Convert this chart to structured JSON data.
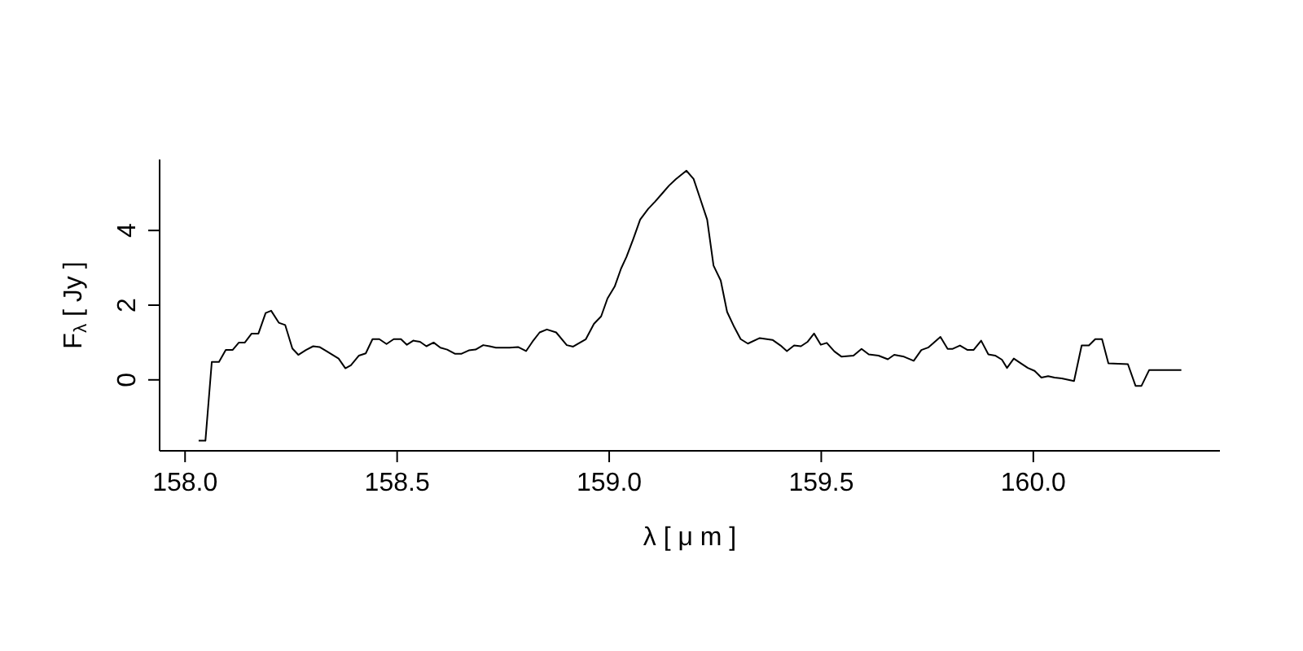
{
  "chart_data": {
    "type": "line",
    "xlabel": "λ [ μ m ]",
    "ylabel": "F$_{λ}$ [ Jy ]",
    "xlim": [
      157.94,
      160.44
    ],
    "ylim": [
      -1.9,
      5.9
    ],
    "xticks": [
      {
        "value": 158,
        "label": "158.0"
      },
      {
        "value": 158.5,
        "label": "158.5"
      },
      {
        "value": 159,
        "label": "159.0"
      },
      {
        "value": 159.5,
        "label": "159.5"
      },
      {
        "value": 160,
        "label": "160.0"
      }
    ],
    "yticks": [
      0,
      2,
      4
    ],
    "grid": false,
    "legend": false,
    "marker": "none",
    "line_style": "solid",
    "x": [
      158.032,
      158.048,
      158.063,
      158.08,
      158.096,
      158.112,
      158.127,
      158.141,
      158.157,
      158.173,
      158.19,
      158.203,
      158.221,
      158.236,
      158.253,
      158.267,
      158.285,
      158.302,
      158.317,
      158.333,
      158.362,
      158.378,
      158.391,
      158.41,
      158.426,
      158.442,
      158.458,
      158.475,
      158.492,
      158.509,
      158.523,
      158.538,
      158.554,
      158.569,
      158.586,
      158.602,
      158.618,
      158.636,
      158.652,
      158.669,
      158.685,
      158.703,
      158.718,
      158.733,
      158.765,
      158.785,
      158.804,
      158.819,
      158.836,
      158.853,
      158.875,
      158.9,
      158.915,
      158.945,
      158.964,
      158.981,
      158.996,
      159.013,
      159.028,
      159.041,
      159.057,
      159.073,
      159.092,
      159.108,
      159.125,
      159.141,
      159.157,
      159.182,
      159.199,
      159.214,
      159.231,
      159.246,
      159.263,
      159.278,
      159.295,
      159.31,
      159.327,
      159.355,
      159.385,
      159.404,
      159.419,
      159.436,
      159.452,
      159.468,
      159.483,
      159.499,
      159.513,
      159.531,
      159.548,
      159.576,
      159.595,
      159.612,
      159.635,
      159.657,
      159.672,
      159.695,
      159.718,
      159.736,
      159.753,
      159.781,
      159.798,
      159.81,
      159.827,
      159.845,
      159.859,
      159.877,
      159.894,
      159.91,
      159.926,
      159.938,
      159.954,
      159.971,
      159.987,
      160.003,
      160.019,
      160.035,
      160.05,
      160.067,
      160.096,
      160.114,
      160.131,
      160.146,
      160.162,
      160.177,
      160.223,
      160.241,
      160.255,
      160.273,
      160.349
    ],
    "series": [
      {
        "color": "#000000",
        "values": [
          -1.63,
          -1.63,
          0.48,
          0.48,
          0.8,
          0.8,
          1.0,
          1.0,
          1.24,
          1.24,
          1.79,
          1.85,
          1.53,
          1.47,
          0.84,
          0.67,
          0.8,
          0.9,
          0.88,
          0.77,
          0.57,
          0.31,
          0.39,
          0.65,
          0.71,
          1.09,
          1.09,
          0.96,
          1.09,
          1.09,
          0.94,
          1.05,
          1.02,
          0.9,
          1.0,
          0.86,
          0.81,
          0.7,
          0.7,
          0.79,
          0.81,
          0.93,
          0.9,
          0.86,
          0.86,
          0.88,
          0.77,
          1.02,
          1.27,
          1.35,
          1.27,
          0.93,
          0.89,
          1.09,
          1.5,
          1.7,
          2.18,
          2.5,
          2.98,
          3.3,
          3.78,
          4.29,
          4.58,
          4.77,
          4.99,
          5.2,
          5.37,
          5.6,
          5.38,
          4.87,
          4.29,
          3.06,
          2.66,
          1.82,
          1.41,
          1.09,
          0.97,
          1.12,
          1.07,
          0.92,
          0.77,
          0.92,
          0.9,
          1.02,
          1.24,
          0.94,
          0.99,
          0.76,
          0.62,
          0.65,
          0.83,
          0.68,
          0.65,
          0.55,
          0.67,
          0.62,
          0.51,
          0.8,
          0.87,
          1.15,
          0.83,
          0.83,
          0.92,
          0.8,
          0.8,
          1.05,
          0.68,
          0.65,
          0.54,
          0.32,
          0.57,
          0.44,
          0.32,
          0.24,
          0.06,
          0.1,
          0.06,
          0.04,
          -0.03,
          0.92,
          0.92,
          1.09,
          1.09,
          0.44,
          0.42,
          -0.16,
          -0.16,
          0.26,
          0.26
        ]
      }
    ]
  }
}
